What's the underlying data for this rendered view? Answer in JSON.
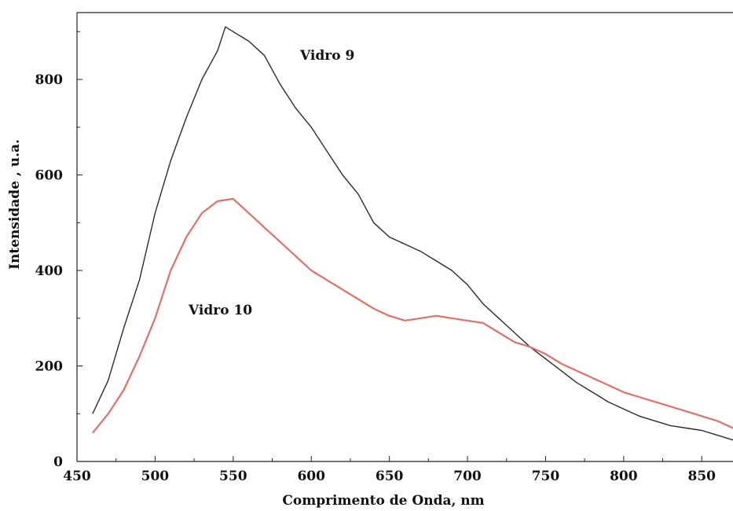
{
  "chart_data": {
    "type": "line",
    "title": "",
    "xlabel": "Comprimento de Onda, nm",
    "ylabel": "Intensidade , u.a.",
    "xlim": [
      450,
      870
    ],
    "ylim": [
      0,
      940
    ],
    "x_ticks": [
      450,
      500,
      550,
      600,
      650,
      700,
      750,
      800,
      850
    ],
    "y_ticks": [
      0,
      200,
      400,
      600,
      800
    ],
    "grid": false,
    "legend": "none",
    "series": [
      {
        "name": "Vidro 9",
        "color": "#2b2b2b",
        "x": [
          460,
          470,
          480,
          490,
          500,
          510,
          520,
          530,
          540,
          545,
          550,
          560,
          570,
          580,
          590,
          600,
          610,
          620,
          630,
          640,
          650,
          660,
          670,
          680,
          690,
          700,
          710,
          720,
          730,
          740,
          750,
          760,
          770,
          780,
          790,
          800,
          810,
          820,
          830,
          840,
          850,
          860,
          870
        ],
        "y": [
          100,
          170,
          280,
          380,
          520,
          630,
          720,
          800,
          860,
          910,
          900,
          880,
          850,
          790,
          740,
          700,
          650,
          600,
          560,
          500,
          470,
          455,
          440,
          420,
          400,
          370,
          330,
          300,
          270,
          240,
          215,
          190,
          165,
          145,
          125,
          110,
          95,
          85,
          75,
          70,
          65,
          55,
          45
        ]
      },
      {
        "name": "Vidro 10",
        "color": "#e07068",
        "x": [
          460,
          470,
          480,
          490,
          500,
          510,
          520,
          530,
          540,
          550,
          560,
          570,
          580,
          590,
          600,
          610,
          620,
          630,
          640,
          650,
          660,
          670,
          680,
          690,
          700,
          710,
          720,
          730,
          740,
          750,
          760,
          770,
          780,
          790,
          800,
          810,
          820,
          830,
          840,
          850,
          860,
          870
        ],
        "y": [
          60,
          100,
          150,
          220,
          300,
          400,
          470,
          520,
          545,
          550,
          520,
          490,
          460,
          430,
          400,
          380,
          360,
          340,
          320,
          305,
          295,
          300,
          305,
          300,
          295,
          290,
          270,
          250,
          240,
          225,
          205,
          190,
          175,
          160,
          145,
          135,
          125,
          115,
          105,
          95,
          85,
          70
        ]
      }
    ],
    "annotations": [
      "Vidro 9",
      "Vidro 10"
    ]
  }
}
